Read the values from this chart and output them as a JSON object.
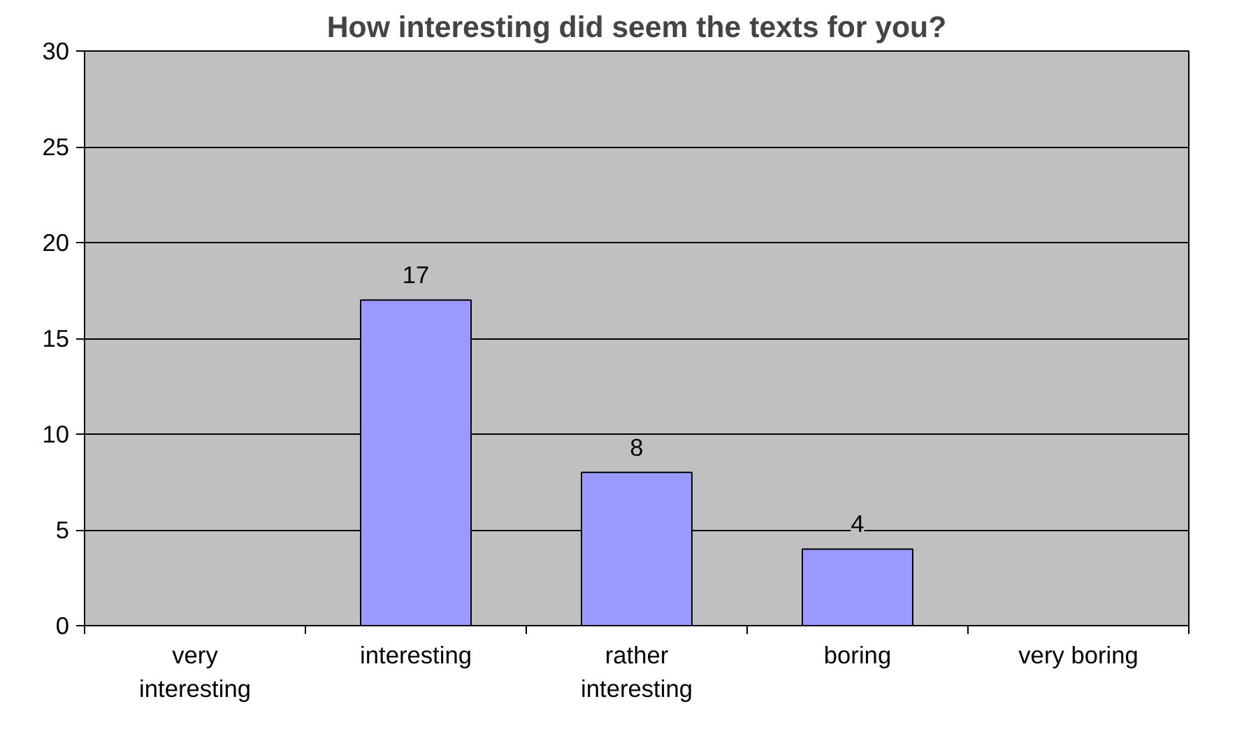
{
  "chart_data": {
    "type": "bar",
    "title": "How interesting did seem the texts for you?",
    "categories": [
      "very interesting",
      "interesting",
      "rather interesting",
      "boring",
      "very boring"
    ],
    "values": [
      null,
      17,
      8,
      4,
      null
    ],
    "value_labels": [
      null,
      "17",
      "8",
      "4",
      null
    ],
    "color": "#9999ff",
    "ylim": [
      0,
      30
    ],
    "yticks": [
      0,
      5,
      10,
      15,
      20,
      25,
      30
    ],
    "grid": "y"
  }
}
